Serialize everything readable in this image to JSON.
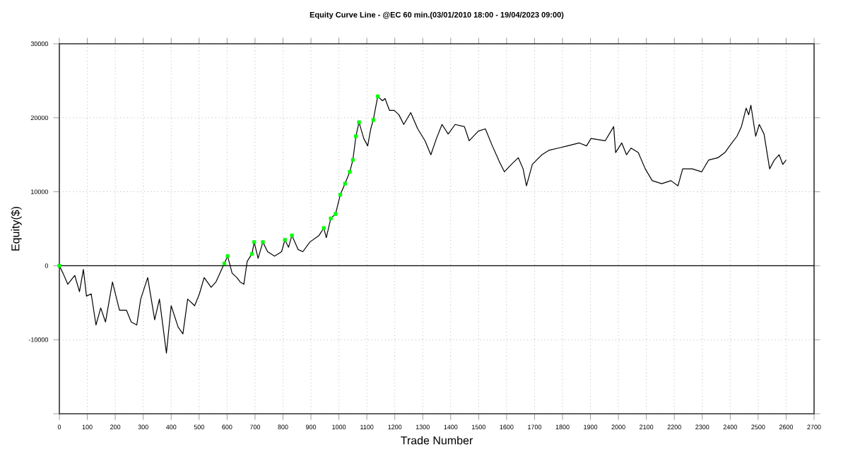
{
  "chart_data": {
    "type": "line",
    "title": "Equity Curve Line - @EC 60 min.(03/01/2010 18:00 - 19/04/2023 09:00)",
    "xlabel": "Trade Number",
    "ylabel": "Equity($)",
    "xlim": [
      0,
      2700
    ],
    "xticks": [
      0,
      100,
      200,
      300,
      400,
      500,
      600,
      700,
      800,
      900,
      1000,
      1100,
      1200,
      1300,
      1400,
      1500,
      1600,
      1700,
      1800,
      1900,
      2000,
      2100,
      2200,
      2300,
      2400,
      2500,
      2600,
      2700
    ],
    "ylim": [
      -20000,
      30000
    ],
    "yticks": [
      {
        "value": -20000,
        "label": null
      },
      -10000,
      0,
      10000,
      20000,
      30000
    ],
    "grid": true,
    "ref_lines": [
      {
        "axis": "y",
        "value": 0,
        "color": "#000000",
        "line_style": "solid"
      }
    ],
    "series": [
      {
        "color": "#000000",
        "marker": "none",
        "line_style": "solid",
        "x": [
          0,
          13,
          30,
          55,
          72,
          86,
          97,
          114,
          131,
          148,
          165,
          190,
          215,
          240,
          257,
          277,
          291,
          316,
          341,
          358,
          383,
          400,
          425,
          442,
          459,
          484,
          501,
          518,
          543,
          560,
          590,
          602,
          618,
          635,
          647,
          660,
          672,
          689,
          697,
          711,
          728,
          745,
          770,
          795,
          807,
          820,
          832,
          854,
          871,
          896,
          929,
          946,
          955,
          971,
          988,
          1005,
          1022,
          1039,
          1050,
          1061,
          1072,
          1089,
          1103,
          1114,
          1123,
          1139,
          1156,
          1165,
          1181,
          1198,
          1215,
          1232,
          1257,
          1282,
          1308,
          1329,
          1349,
          1369,
          1391,
          1416,
          1449,
          1466,
          1499,
          1524,
          1549,
          1575,
          1592,
          1617,
          1642,
          1659,
          1671,
          1692,
          1726,
          1751,
          1785,
          1818,
          1860,
          1886,
          1902,
          1953,
          1983,
          1990,
          2012,
          2029,
          2045,
          2071,
          2096,
          2121,
          2155,
          2188,
          2213,
          2230,
          2264,
          2298,
          2323,
          2356,
          2381,
          2398,
          2424,
          2440,
          2457,
          2466,
          2474,
          2491,
          2504,
          2521,
          2541,
          2558,
          2575,
          2588,
          2600
        ],
        "values": [
          0,
          -1000,
          -2500,
          -1300,
          -3500,
          -500,
          -4100,
          -3800,
          -8000,
          -5700,
          -7600,
          -2200,
          -6000,
          -6000,
          -7600,
          -8000,
          -4500,
          -1600,
          -7300,
          -4500,
          -11800,
          -5400,
          -8300,
          -9200,
          -4500,
          -5400,
          -3800,
          -1600,
          -2900,
          -2200,
          300,
          1300,
          -1000,
          -1600,
          -2200,
          -2500,
          600,
          1600,
          3200,
          1000,
          3200,
          1900,
          1300,
          1900,
          3500,
          2500,
          4100,
          2200,
          1900,
          3200,
          4100,
          5100,
          3800,
          6400,
          7000,
          9600,
          11100,
          12700,
          14300,
          17500,
          19400,
          17200,
          16200,
          18500,
          19700,
          22900,
          22300,
          22600,
          21000,
          21000,
          20400,
          19100,
          20700,
          18500,
          16900,
          15000,
          17200,
          19100,
          17800,
          19100,
          18800,
          16900,
          18200,
          18500,
          16200,
          14000,
          12700,
          13700,
          14600,
          13100,
          10800,
          13700,
          15000,
          15600,
          15900,
          16200,
          16600,
          16200,
          17200,
          16900,
          18800,
          15300,
          16600,
          15000,
          15900,
          15300,
          13100,
          11500,
          11100,
          11500,
          10800,
          13100,
          13100,
          12700,
          14300,
          14600,
          15300,
          16200,
          17500,
          18800,
          21300,
          20400,
          21700,
          17500,
          19100,
          17800,
          13100,
          14300,
          15000,
          13700,
          14300
        ]
      },
      {
        "type": "scatter",
        "color": "#00ff00",
        "marker": "square",
        "x": [
          0,
          590,
          602,
          689,
          697,
          728,
          807,
          832,
          946,
          971,
          988,
          1005,
          1022,
          1039,
          1050,
          1061,
          1072,
          1123,
          1139
        ],
        "values": [
          0,
          300,
          1300,
          1600,
          3200,
          3200,
          3500,
          4100,
          5100,
          6400,
          7000,
          9600,
          11100,
          12700,
          14300,
          17500,
          19400,
          19700,
          22900
        ]
      }
    ]
  }
}
